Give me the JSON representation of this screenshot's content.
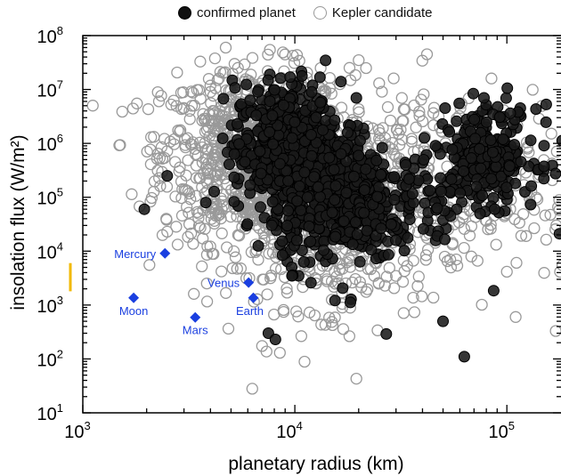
{
  "chart_data": {
    "type": "scatter",
    "title": "",
    "xlabel": "planetary radius (km)",
    "ylabel": "insolation flux (W/m²)",
    "x_scale": "log",
    "y_scale": "log",
    "xlim": [
      1000,
      180000
    ],
    "ylim": [
      10,
      100000000
    ],
    "x_ticks": [
      {
        "base": "10",
        "exp": "3"
      },
      {
        "base": "10",
        "exp": "4"
      },
      {
        "base": "10",
        "exp": "5"
      }
    ],
    "y_ticks": [
      {
        "base": "10",
        "exp": "1"
      },
      {
        "base": "10",
        "exp": "2"
      },
      {
        "base": "10",
        "exp": "3"
      },
      {
        "base": "10",
        "exp": "4"
      },
      {
        "base": "10",
        "exp": "5"
      },
      {
        "base": "10",
        "exp": "6"
      },
      {
        "base": "10",
        "exp": "7"
      },
      {
        "base": "10",
        "exp": "8"
      }
    ],
    "grid": false,
    "legend": {
      "placement": "top-center",
      "entries": [
        "confirmed planet",
        "Kepler candidate"
      ]
    },
    "series": [
      {
        "name": "confirmed planet",
        "marker": "filled-circle",
        "color": "#111111",
        "clusters": [
          {
            "x_center": 9000,
            "y_center": 800000,
            "x_spread": 0.12,
            "y_spread": 0.6,
            "count": 520
          },
          {
            "x_center": 15000,
            "y_center": 120000,
            "x_spread": 0.14,
            "y_spread": 0.65,
            "count": 480
          },
          {
            "x_center": 80000,
            "y_center": 600000,
            "x_spread": 0.12,
            "y_spread": 0.45,
            "count": 260
          },
          {
            "x_center": 30000,
            "y_center": 60000,
            "x_spread": 0.18,
            "y_spread": 0.5,
            "count": 120
          }
        ],
        "points": [
          {
            "x": 1950,
            "y": 60000
          },
          {
            "x": 2500,
            "y": 250000
          },
          {
            "x": 3800,
            "y": 80000
          },
          {
            "x": 7500,
            "y": 300
          },
          {
            "x": 8100,
            "y": 230
          },
          {
            "x": 27000,
            "y": 290
          },
          {
            "x": 63000,
            "y": 110
          },
          {
            "x": 50000,
            "y": 500
          },
          {
            "x": 16500,
            "y": 14000000
          },
          {
            "x": 9500,
            "y": 17000000
          },
          {
            "x": 12000,
            "y": 9000000
          },
          {
            "x": 78000,
            "y": 7000000
          }
        ]
      },
      {
        "name": "Kepler candidate",
        "marker": "open-circle",
        "color": "#999999",
        "clusters": [
          {
            "x_center": 6500,
            "y_center": 600000,
            "x_spread": 0.22,
            "y_spread": 0.8,
            "count": 900
          },
          {
            "x_center": 14000,
            "y_center": 60000,
            "x_spread": 0.22,
            "y_spread": 0.9,
            "count": 700
          },
          {
            "x_center": 60000,
            "y_center": 200000,
            "x_spread": 0.35,
            "y_spread": 0.9,
            "count": 320
          }
        ],
        "points": [
          {
            "x": 1800,
            "y": 5500000
          },
          {
            "x": 2100,
            "y": 1300000
          },
          {
            "x": 2350,
            "y": 850000
          },
          {
            "x": 2500,
            "y": 23000
          },
          {
            "x": 6300,
            "y": 28
          },
          {
            "x": 19500,
            "y": 43
          },
          {
            "x": 8500,
            "y": 130
          },
          {
            "x": 170000,
            "y": 330
          },
          {
            "x": 110000,
            "y": 600
          },
          {
            "x": 42000,
            "y": 45000000
          },
          {
            "x": 20000,
            "y": 35000000
          },
          {
            "x": 5800,
            "y": 14000000
          }
        ]
      }
    ],
    "reference_bodies": [
      {
        "name": "Mercury",
        "x": 2440,
        "y": 9100,
        "label_side": "left"
      },
      {
        "name": "Moon",
        "x": 1737,
        "y": 1360,
        "label_side": "below"
      },
      {
        "name": "Mars",
        "x": 3390,
        "y": 590,
        "label_side": "below"
      },
      {
        "name": "Venus",
        "x": 6052,
        "y": 2610,
        "label_side": "left"
      },
      {
        "name": "Earth",
        "x": 6371,
        "y": 1360,
        "label_side": "below-left"
      }
    ],
    "reference_color": "#1a3fe0",
    "highlight_bar": {
      "x": 970,
      "y_range": [
        1800,
        6000
      ],
      "color": "#f2b900"
    }
  }
}
